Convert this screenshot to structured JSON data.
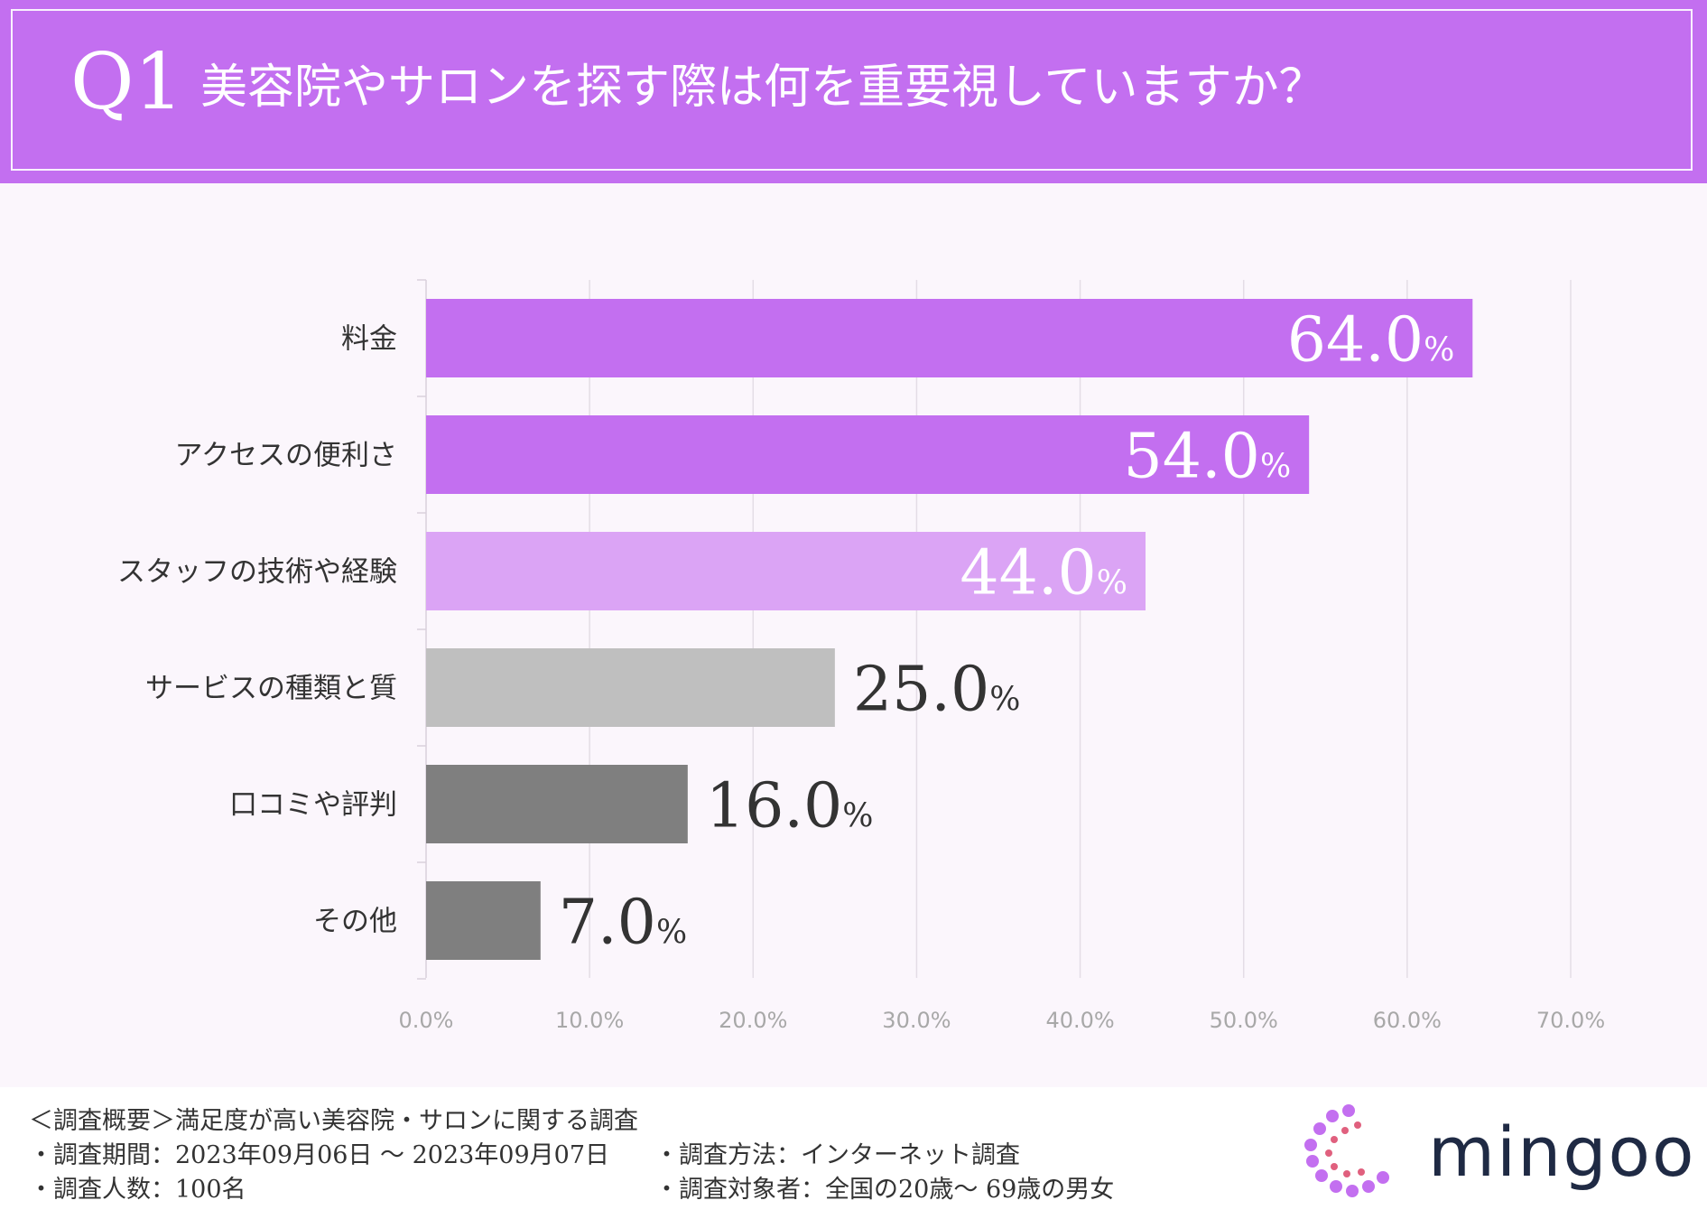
{
  "header": {
    "q_label": "Q1",
    "title": "美容院やサロンを探す際は何を重要視していますか？"
  },
  "colors": {
    "header_bg": "#c36ff0",
    "bar_primary": "#c36ff0",
    "bar_light": "#dba4f5",
    "bar_gray": "#bfbfbf",
    "bar_dark": "#7f7f7f"
  },
  "chart_data": {
    "type": "bar",
    "orientation": "horizontal",
    "categories": [
      "料金",
      "アクセスの便利さ",
      "スタッフの技術や経験",
      "サービスの種類と質",
      "口コミや評判",
      "その他"
    ],
    "values": [
      64.0,
      54.0,
      44.0,
      25.0,
      16.0,
      7.0
    ],
    "value_labels": [
      "64.0",
      "54.0",
      "44.0",
      "25.0",
      "16.0",
      "7.0"
    ],
    "value_unit": "%",
    "bar_colors": [
      "#c36ff0",
      "#c36ff0",
      "#dba4f5",
      "#bfbfbf",
      "#7f7f7f",
      "#7f7f7f"
    ],
    "label_inside": [
      true,
      true,
      true,
      false,
      false,
      false
    ],
    "xlim": [
      0,
      70
    ],
    "xticks": [
      "0.0%",
      "10.0%",
      "20.0%",
      "30.0%",
      "40.0%",
      "50.0%",
      "60.0%",
      "70.0%"
    ],
    "grid": true,
    "title": "",
    "xlabel": "",
    "ylabel": ""
  },
  "footer": {
    "overview": "＜調査概要＞満足度が高い美容院・サロンに関する調査",
    "period": "・調査期間：2023年09月06日 〜 2023年09月07日",
    "method": "・調査方法：インターネット調査",
    "count": "・調査人数：100名",
    "target": "・調査対象者：全国の20歳〜 69歳の男女"
  },
  "logo": {
    "text": "mingoo"
  }
}
